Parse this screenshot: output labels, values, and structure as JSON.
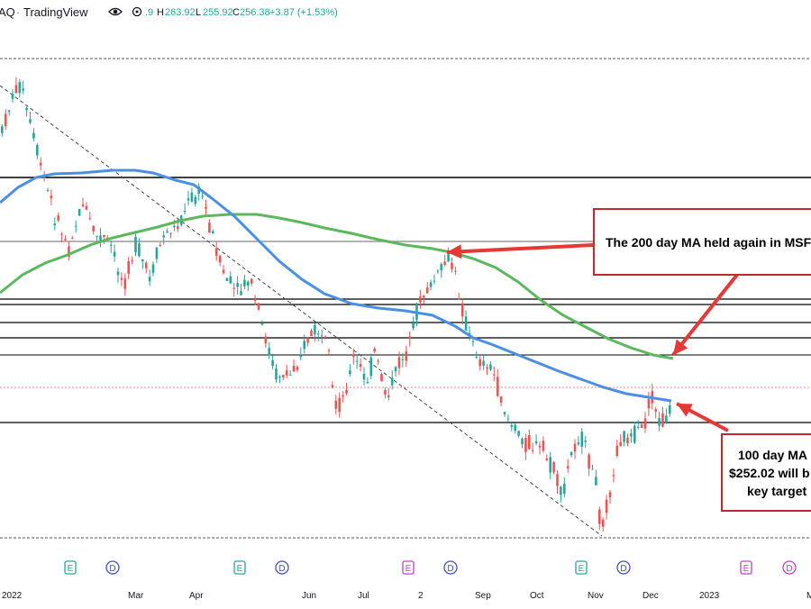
{
  "header": {
    "symbol_fragment": "AQ",
    "brand": "TradingView",
    "ohlc_fragment": ".9",
    "high_label": "H",
    "high_value": "263.92",
    "low_label": "L",
    "low_value": "255.92",
    "close_label": "C",
    "close_value": "256.38",
    "change": "+3.87 (+1.53%)"
  },
  "colors": {
    "up": "#26a69a",
    "down": "#ef5350",
    "ma100": "#4a90e2",
    "ma200": "#5cb85c",
    "annotation": "#e53935",
    "earnings": "#26a69a",
    "dividend": "#3f51b5"
  },
  "annotations": {
    "ma200_note": "The 200 day MA held again in MSF",
    "ma100_line1": "100 day MA",
    "ma100_line2": "$252.02 will b",
    "ma100_line3": "key target"
  },
  "chart_data": {
    "type": "candlestick",
    "x_tick_labels": [
      "2022",
      "Mar",
      "Apr",
      "Jun",
      "Jul",
      "2",
      "Sep",
      "Oct",
      "Nov",
      "Dec",
      "2023",
      "M"
    ],
    "event_markers": [
      {
        "kind": "earnings",
        "symbol": "E"
      },
      {
        "kind": "dividend",
        "symbol": "D"
      },
      {
        "kind": "earnings",
        "symbol": "E"
      },
      {
        "kind": "dividend",
        "symbol": "D"
      },
      {
        "kind": "earnings",
        "symbol": "E",
        "upcoming": true
      },
      {
        "kind": "dividend",
        "symbol": "D"
      },
      {
        "kind": "earnings",
        "symbol": "E"
      },
      {
        "kind": "dividend",
        "symbol": "D"
      },
      {
        "kind": "earnings",
        "symbol": "E",
        "upcoming": true
      },
      {
        "kind": "dividend",
        "symbol": "D",
        "upcoming": true
      }
    ],
    "series": [
      {
        "kind": "moving-average",
        "period": 100
      },
      {
        "kind": "moving-average",
        "period": 200
      }
    ],
    "last_price": 256.38,
    "ma100_value": 252.02
  }
}
